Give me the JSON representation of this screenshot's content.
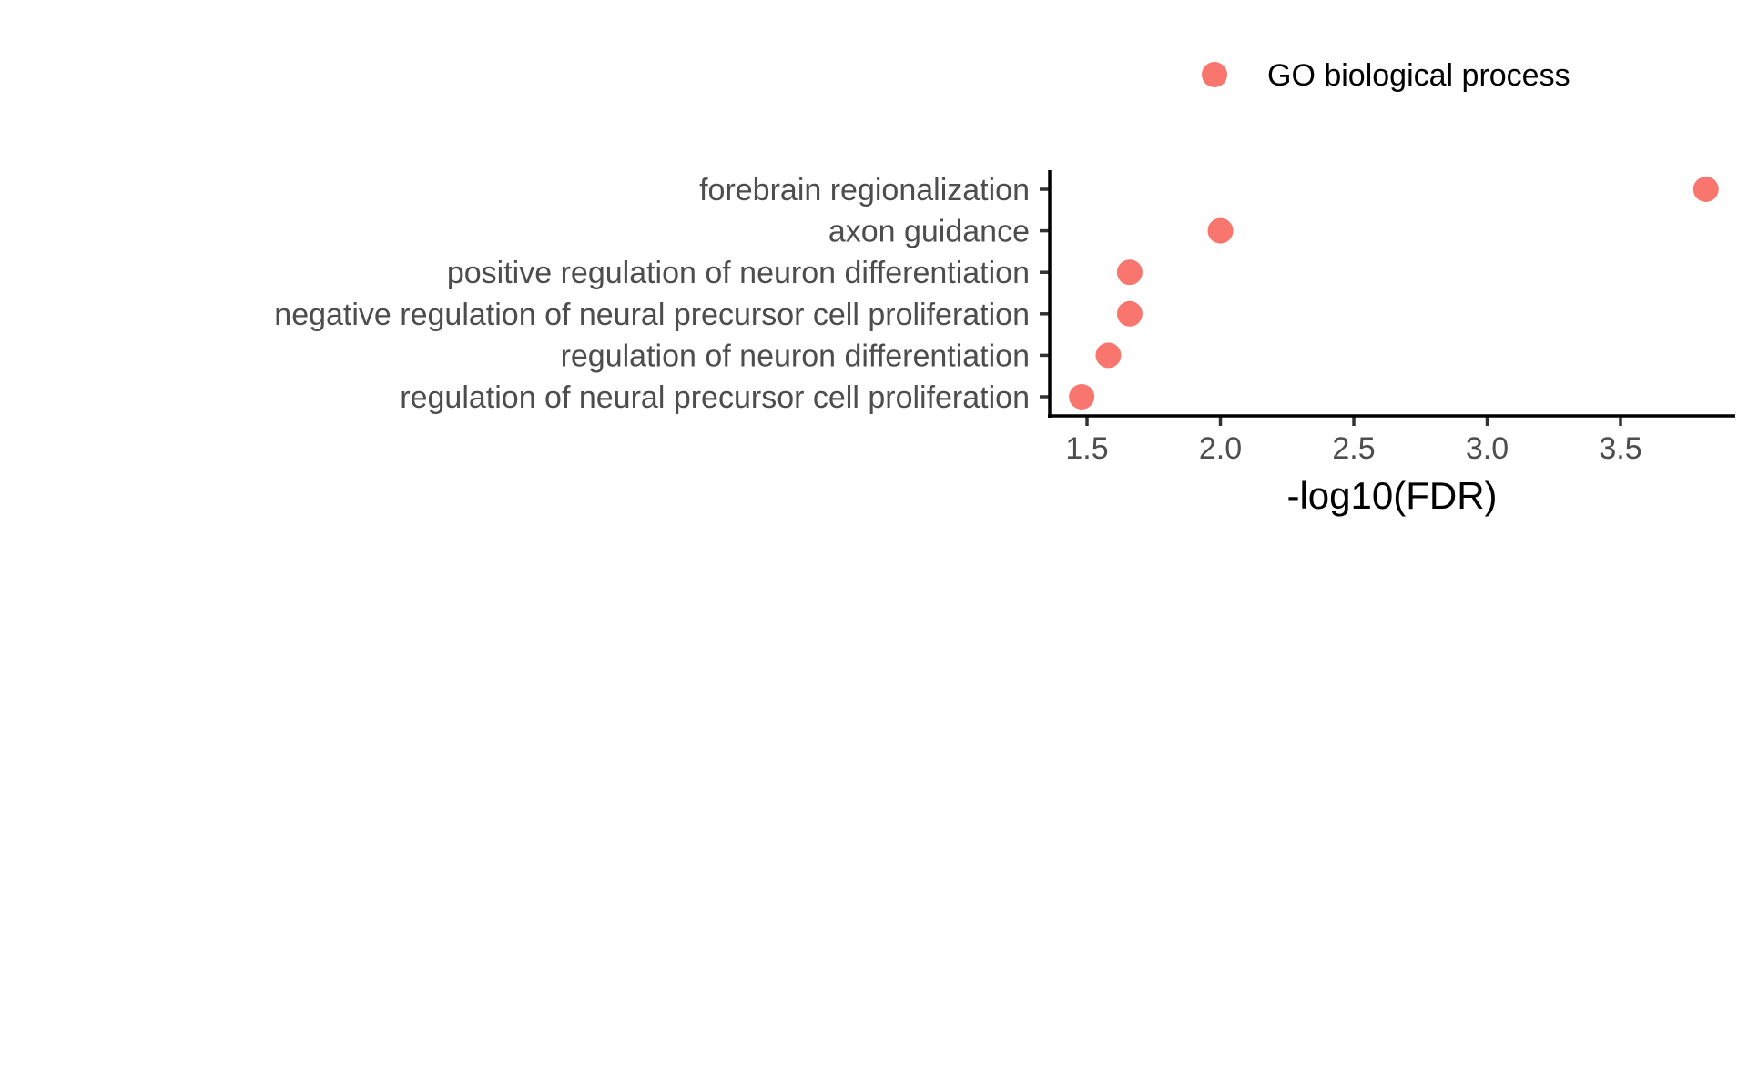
{
  "chart_data": {
    "type": "scatter",
    "title": "",
    "xlabel": "-log10(FDR)",
    "ylabel": "",
    "xlim": [
      1.36,
      3.93
    ],
    "x_ticks": [
      "1.5",
      "2.0",
      "2.5",
      "3.0",
      "3.5"
    ],
    "x_tick_values": [
      1.5,
      2.0,
      2.5,
      3.0,
      3.5
    ],
    "categories": [
      "forebrain regionalization",
      "axon guidance",
      "positive regulation of neuron differentiation",
      "negative regulation of neural precursor cell proliferation",
      "regulation of neuron differentiation",
      "regulation of neural precursor cell proliferation"
    ],
    "series": [
      {
        "name": "GO biological process",
        "color": "#F8766D",
        "values": [
          3.82,
          2.0,
          1.66,
          1.66,
          1.58,
          1.48
        ]
      }
    ],
    "legend": {
      "position": "top"
    },
    "grid": false
  }
}
